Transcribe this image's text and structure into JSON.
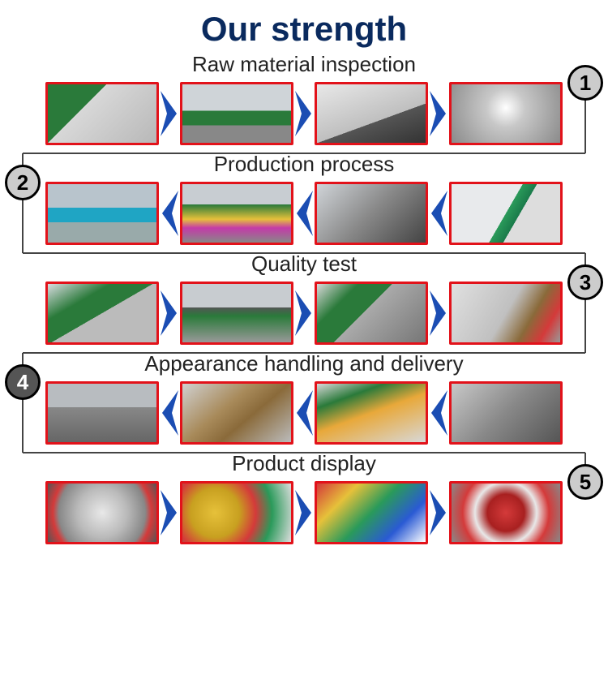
{
  "title": "Our strength",
  "title_color": "#0a2a5e",
  "title_fontsize": 42,
  "section_title_fontsize": 26,
  "section_title_color": "#222222",
  "photo_border_color": "#e2121a",
  "photo_border_width": 3,
  "photo_width": 140,
  "photo_height": 78,
  "arrow_fill": "#1b4db3",
  "arrow_width": 26,
  "badge_border_color": "#000000",
  "badge_diameter": 44,
  "connector_color": "#444444",
  "sections": [
    {
      "number": "1",
      "title": "Raw material inspection",
      "arrow_direction": "right",
      "badge_side": "right",
      "badge_bg": "#cccccc",
      "badge_text_color": "#000000",
      "photos": [
        {
          "bg": "linear-gradient(135deg,#2a7a3a 0%,#2a7a3a 35%,#d8d8d8 35%,#b8b8b8 100%)",
          "desc": "worker-green-shirt-monitor"
        },
        {
          "bg": "linear-gradient(180deg,#cfd4d8 0%,#cfd4d8 45%,#2a7a3a 45%,#2a7a3a 70%,#888 70%)",
          "desc": "worker-inspecting-parts"
        },
        {
          "bg": "linear-gradient(160deg,#e8e8e8 0%,#bfbfbf 60%,#555 60%,#333 100%)",
          "desc": "measuring-instrument"
        },
        {
          "bg": "radial-gradient(circle at 50% 40%,#fff 0%,#c8c8c8 30%,#8a8a8a 100%)",
          "desc": "dial-gauge-on-disc"
        }
      ]
    },
    {
      "number": "2",
      "title": "Production process",
      "arrow_direction": "left",
      "badge_side": "left",
      "badge_bg": "#cccccc",
      "badge_text_color": "#000000",
      "photos": [
        {
          "bg": "linear-gradient(180deg,#b8c4cc 0%,#b8c4cc 40%,#1fa5c4 40%,#1fa5c4 65%,#9aa 65%)",
          "desc": "worker-blue-uniform"
        },
        {
          "bg": "linear-gradient(180deg,#c8cdd2 0%,#c8cdd2 35%,#2a7a3a 35%,#e6c13a 60%,#c43aa8 75%,#888 100%)",
          "desc": "factory-floor-workers"
        },
        {
          "bg": "linear-gradient(135deg,#d0d4d8 0%,#888 50%,#444 100%)",
          "desc": "press-machine"
        },
        {
          "bg": "linear-gradient(120deg,#e8eaec 0%,#e8eaec 50%,#2a9a5a 50%,#1a7a4a 60%,#ddd 60%)",
          "desc": "cnc-machine"
        }
      ]
    },
    {
      "number": "3",
      "title": "Quality test",
      "arrow_direction": "right",
      "badge_side": "right",
      "badge_bg": "#cccccc",
      "badge_text_color": "#000000",
      "photos": [
        {
          "bg": "linear-gradient(150deg,#d8dce0 0%,#2a7a3a 30%,#2a7a3a 50%,#bbb 50%)",
          "desc": "worker-testing-disc"
        },
        {
          "bg": "linear-gradient(180deg,#c8ccd0 0%,#c8ccd0 40%,#555 40%,#2a7a3a 55%,#999 100%)",
          "desc": "grinder-sparks"
        },
        {
          "bg": "linear-gradient(135deg,#d8d8d8 0%,#2a7a3a 25%,#2a7a3a 45%,#aaa 45%,#777 100%)",
          "desc": "cutting-test"
        },
        {
          "bg": "linear-gradient(120deg,#e0e0e0 0%,#c0c0c0 50%,#8a6a3a 70%,#d43a3a 85%,#999 100%)",
          "desc": "test-bench"
        }
      ]
    },
    {
      "number": "4",
      "title": "Appearance handling and delivery",
      "arrow_direction": "left",
      "badge_side": "left",
      "badge_bg": "#555555",
      "badge_text_color": "#ffffff",
      "photos": [
        {
          "bg": "linear-gradient(180deg,#b8bcc0 0%,#b8bcc0 40%,#888 40%,#666 100%)",
          "desc": "warehouse-stacks"
        },
        {
          "bg": "linear-gradient(140deg,#d0d0d0 0%,#a88a5a 40%,#8a6a3a 60%,#bbb 100%)",
          "desc": "packaging-machine"
        },
        {
          "bg": "linear-gradient(160deg,#d8d8d8 0%,#2a7a3a 25%,#e8a83a 50%,#d8d8d8 100%)",
          "desc": "worker-labeling"
        },
        {
          "bg": "linear-gradient(135deg,#c8c8c8 0%,#888 50%,#555 100%)",
          "desc": "delivery-machine"
        }
      ]
    },
    {
      "number": "5",
      "title": "Product display",
      "arrow_direction": "right",
      "badge_side": "right",
      "badge_bg": "#cccccc",
      "badge_text_color": "#000000",
      "photos": [
        {
          "bg": "radial-gradient(circle at 50% 50%,#e8e8e8 0%,#bababa 40%,#888 70%,#d43a3a 80%,#555 100%)",
          "desc": "steel-disc"
        },
        {
          "bg": "radial-gradient(circle at 30% 50%,#e6c13a 0%,#c8a020 30%,#d43a3a 50%,#2a9a5a 70%,#ddd 100%)",
          "desc": "colored-discs-gold"
        },
        {
          "bg": "linear-gradient(135deg,#d43a3a 0%,#e6c13a 25%,#2a9a5a 50%,#2a5ad4 75%,#fff 100%)",
          "desc": "assorted-color-discs"
        },
        {
          "bg": "radial-gradient(circle at 50% 50%,#d43a3a 0%,#a82020 30%,#e8e8e8 50%,#d43a3a 70%,#888 100%)",
          "desc": "red-segmented-discs"
        }
      ]
    }
  ]
}
